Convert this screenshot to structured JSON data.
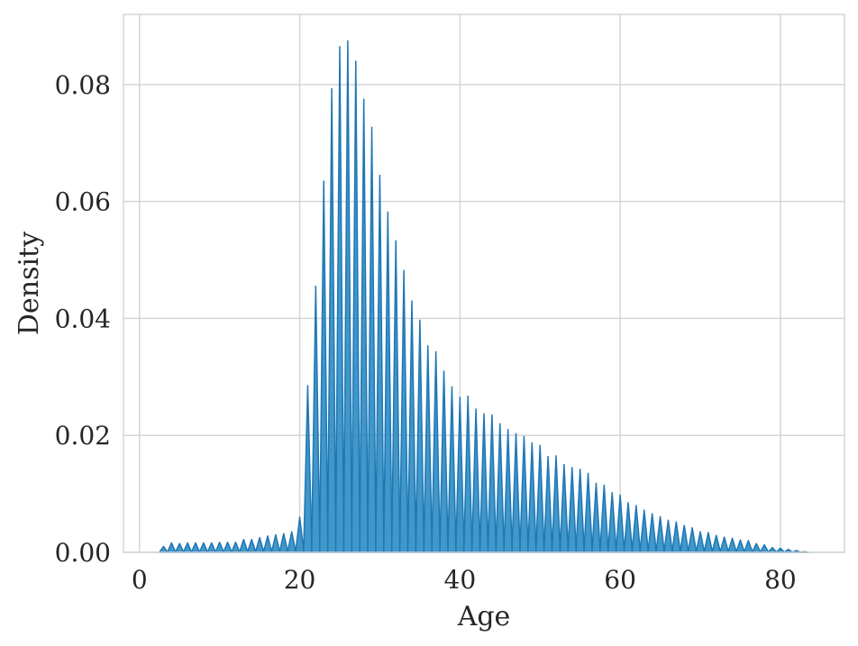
{
  "chart_data": {
    "type": "area",
    "xlabel": "Age",
    "ylabel": "Density",
    "xlim": [
      -2,
      88
    ],
    "ylim": [
      0,
      0.092
    ],
    "xticks": [
      0,
      20,
      40,
      60,
      80
    ],
    "yticks": [
      0.0,
      0.02,
      0.04,
      0.06,
      0.08
    ],
    "xtick_labels": [
      "0",
      "20",
      "40",
      "60",
      "80"
    ],
    "ytick_labels": [
      "0.00",
      "0.02",
      "0.04",
      "0.06",
      "0.08"
    ],
    "grid": true,
    "color": "#1f77b4",
    "fill_color": "#2b8cc4",
    "series": [
      {
        "ages": [
          3,
          4,
          5,
          6,
          7,
          8,
          9,
          10,
          11,
          12,
          13,
          14,
          15,
          16,
          17,
          18,
          19,
          20,
          21,
          22,
          23,
          24,
          25,
          26,
          27,
          28,
          29,
          30,
          31,
          32,
          33,
          34,
          35,
          36,
          37,
          38,
          39,
          40,
          41,
          42,
          43,
          44,
          45,
          46,
          47,
          48,
          49,
          50,
          51,
          52,
          53,
          54,
          55,
          56,
          57,
          58,
          59,
          60,
          61,
          62,
          63,
          64,
          65,
          66,
          67,
          68,
          69,
          70,
          71,
          72,
          73,
          74,
          75,
          76,
          77,
          78,
          79,
          80,
          81,
          82,
          83
        ],
        "densities": [
          0.001,
          0.0016,
          0.0015,
          0.0016,
          0.0016,
          0.0016,
          0.0016,
          0.0017,
          0.0017,
          0.0017,
          0.0022,
          0.0022,
          0.0025,
          0.0028,
          0.003,
          0.0032,
          0.0035,
          0.006,
          0.0285,
          0.0455,
          0.0635,
          0.0793,
          0.0865,
          0.0875,
          0.084,
          0.0775,
          0.0727,
          0.0645,
          0.0582,
          0.0533,
          0.0482,
          0.043,
          0.0397,
          0.0353,
          0.0343,
          0.031,
          0.0283,
          0.0265,
          0.0267,
          0.0245,
          0.0237,
          0.0235,
          0.022,
          0.021,
          0.0203,
          0.0198,
          0.0187,
          0.0183,
          0.0164,
          0.0165,
          0.015,
          0.0145,
          0.0142,
          0.0135,
          0.0118,
          0.0115,
          0.0102,
          0.0098,
          0.0085,
          0.008,
          0.0072,
          0.0066,
          0.0061,
          0.0055,
          0.0052,
          0.0046,
          0.0042,
          0.0035,
          0.0034,
          0.0029,
          0.0026,
          0.0024,
          0.0021,
          0.002,
          0.0015,
          0.0013,
          0.0008,
          0.0007,
          0.0005,
          0.0003,
          0.0001
        ]
      }
    ]
  }
}
